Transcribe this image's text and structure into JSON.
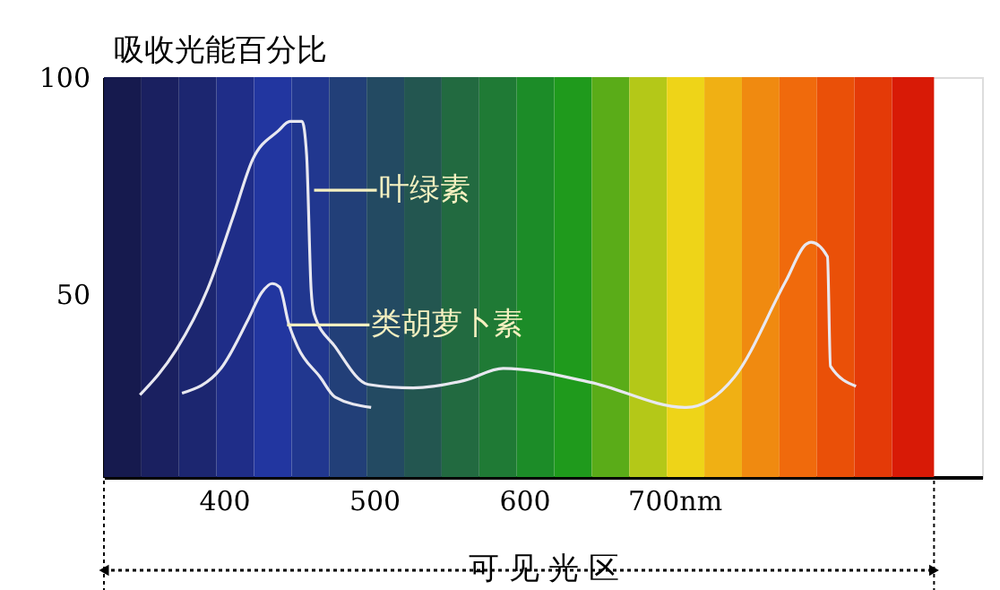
{
  "chart_data": {
    "type": "line",
    "ylabel": "吸收光能百分比",
    "xlabel": "可 见 光 区",
    "xlim": [
      320,
      905
    ],
    "ylim": [
      8,
      100
    ],
    "xticks": [
      400,
      500,
      600,
      {
        "value": 700,
        "label": "700nm"
      }
    ],
    "yticks": [
      50,
      100
    ],
    "marker": "none",
    "line_style": "solid",
    "series": [
      {
        "color": "#e8e8f0",
        "x": [
          344,
          368,
          389,
          406,
          419,
          436,
          444,
          452,
          455,
          458,
          460,
          474,
          496,
          526,
          560,
          586,
          644,
          708,
          740,
          774,
          788,
          791,
          802,
          804,
          821
        ],
        "values": [
          26.9,
          37.2,
          51.2,
          67.8,
          81,
          87.6,
          89.8,
          89.8,
          82.2,
          51.2,
          45.5,
          38,
          29.3,
          28.5,
          30.2,
          33,
          29.8,
          24,
          31,
          52.9,
          61.6,
          62,
          58.7,
          33.5,
          28.9
        ]
      },
      {
        "color": "#e8e8f0",
        "x": [
          372,
          398,
          416,
          425,
          432,
          437,
          443,
          449,
          464,
          474,
          498
        ],
        "values": [
          27.3,
          33,
          44.2,
          50.4,
          52.5,
          51.7,
          43.4,
          38,
          31,
          26.4,
          24
        ]
      }
    ],
    "annotations": [
      {
        "text": "叶绿素",
        "x": 460,
        "y": 74
      },
      {
        "text": "类胡萝卜素",
        "x": 442,
        "y": 43
      }
    ],
    "bands": [
      {
        "axis": "x",
        "from": 320,
        "to": 345,
        "color": "#161a4e"
      },
      {
        "axis": "x",
        "from": 345,
        "to": 370,
        "color": "#1a2060"
      },
      {
        "axis": "x",
        "from": 370,
        "to": 395,
        "color": "#1c2670"
      },
      {
        "axis": "x",
        "from": 395,
        "to": 420,
        "color": "#1f2d88"
      },
      {
        "axis": "x",
        "from": 420,
        "to": 445,
        "color": "#2236a0"
      },
      {
        "axis": "x",
        "from": 445,
        "to": 470,
        "color": "#21378f"
      },
      {
        "axis": "x",
        "from": 470,
        "to": 495,
        "color": "#223f78"
      },
      {
        "axis": "x",
        "from": 495,
        "to": 520,
        "color": "#234a62"
      },
      {
        "axis": "x",
        "from": 520,
        "to": 545,
        "color": "#235650"
      },
      {
        "axis": "x",
        "from": 545,
        "to": 570,
        "color": "#226a40"
      },
      {
        "axis": "x",
        "from": 570,
        "to": 595,
        "color": "#1f7a35"
      },
      {
        "axis": "x",
        "from": 595,
        "to": 620,
        "color": "#1c8c28"
      },
      {
        "axis": "x",
        "from": 620,
        "to": 645,
        "color": "#1f9a1c"
      },
      {
        "axis": "x",
        "from": 645,
        "to": 670,
        "color": "#5aac18"
      },
      {
        "axis": "x",
        "from": 670,
        "to": 695,
        "color": "#b4c818"
      },
      {
        "axis": "x",
        "from": 695,
        "to": 720,
        "color": "#eed418"
      },
      {
        "axis": "x",
        "from": 720,
        "to": 745,
        "color": "#f0b014"
      },
      {
        "axis": "x",
        "from": 745,
        "to": 770,
        "color": "#f08a10"
      },
      {
        "axis": "x",
        "from": 770,
        "to": 795,
        "color": "#f06a0c"
      },
      {
        "axis": "x",
        "from": 795,
        "to": 820,
        "color": "#ea5008"
      },
      {
        "axis": "x",
        "from": 820,
        "to": 845,
        "color": "#e43a08"
      },
      {
        "axis": "x",
        "from": 845,
        "to": 873,
        "color": "#d81a06"
      }
    ]
  }
}
